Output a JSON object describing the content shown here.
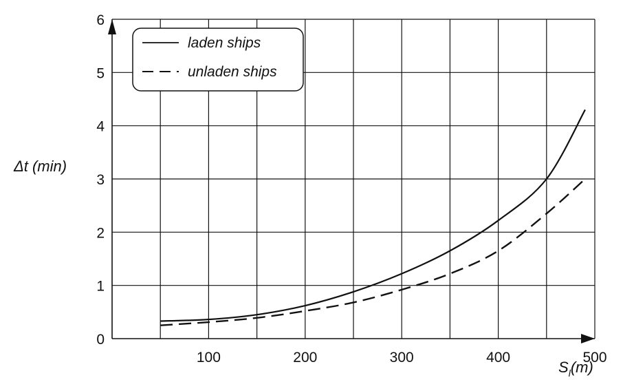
{
  "chart_data": {
    "type": "line",
    "title": "",
    "xlabel": "S",
    "xlabel_sub": "l",
    "xlabel_unit": "(m)",
    "ylabel": "Δt (min)",
    "xlim": [
      0,
      500
    ],
    "ylim": [
      0,
      6
    ],
    "x_ticks": [
      "100",
      "200",
      "300",
      "400",
      "500"
    ],
    "y_ticks": [
      "0",
      "1",
      "2",
      "3",
      "4",
      "5",
      "6"
    ],
    "grid": true,
    "legend_position": "top-left",
    "series": [
      {
        "name": "laden ships",
        "style": "solid",
        "x": [
          50,
          100,
          150,
          200,
          250,
          300,
          350,
          400,
          450,
          490
        ],
        "y": [
          0.33,
          0.36,
          0.45,
          0.62,
          0.88,
          1.22,
          1.65,
          2.22,
          3.0,
          4.3
        ]
      },
      {
        "name": "unladen ships",
        "style": "dashed",
        "x": [
          50,
          100,
          150,
          200,
          250,
          300,
          350,
          400,
          450,
          490
        ],
        "y": [
          0.25,
          0.31,
          0.39,
          0.52,
          0.68,
          0.92,
          1.22,
          1.65,
          2.35,
          3.0
        ]
      }
    ]
  }
}
